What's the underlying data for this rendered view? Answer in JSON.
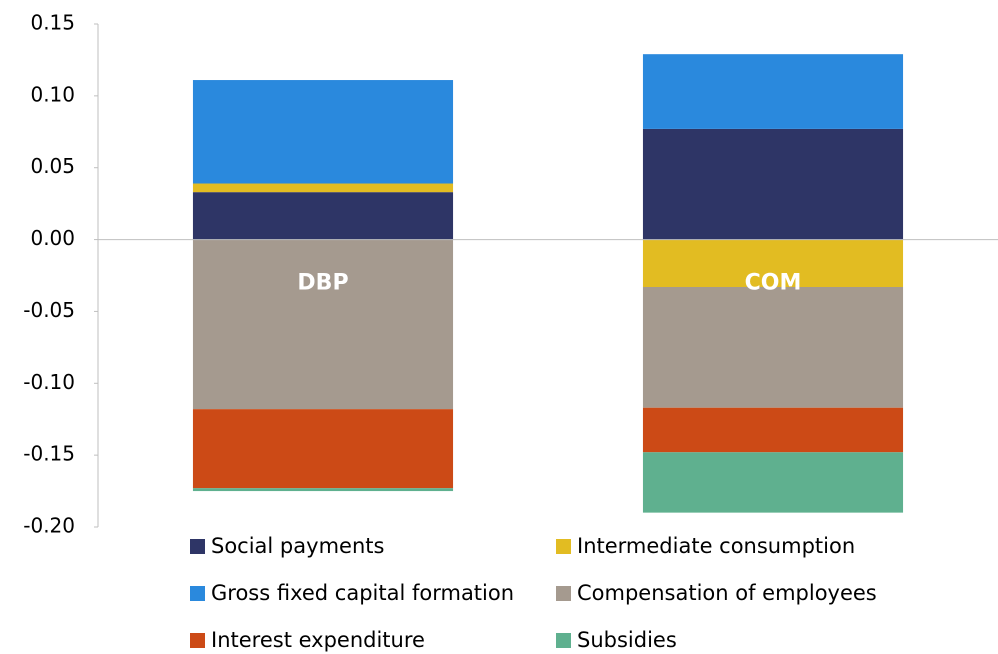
{
  "chart_data": {
    "type": "stacked_bar",
    "categories": [
      "DBP",
      "COM"
    ],
    "series": [
      {
        "name": "Social payments",
        "color": "#2e3566",
        "values": [
          0.033,
          0.077
        ]
      },
      {
        "name": "Intermediate consumption",
        "color": "#e2bc22",
        "values": [
          0.006,
          -0.033
        ]
      },
      {
        "name": "Gross fixed capital formation",
        "color": "#2a89dd",
        "values": [
          0.072,
          0.052
        ]
      },
      {
        "name": "Compensation of employees",
        "color": "#a59a8f",
        "values": [
          -0.118,
          -0.084
        ]
      },
      {
        "name": "Interest expenditure",
        "color": "#cc4a16",
        "values": [
          -0.055,
          -0.031
        ]
      },
      {
        "name": "Subsidies",
        "color": "#5fb08f",
        "values": [
          -0.002,
          -0.042
        ]
      }
    ],
    "ylim": [
      -0.2,
      0.15
    ],
    "yticks": [
      0.15,
      {
        "value": 0.1,
        "label": "0.10"
      },
      {
        "value": 0.05,
        "label": "0.05"
      },
      {
        "value": 0,
        "label": "0.00"
      },
      {
        "value": -0.05,
        "label": "-0.05"
      },
      {
        "value": -0.1,
        "label": "-0.10"
      },
      -0.15,
      {
        "value": -0.2,
        "label": "-0.20"
      }
    ],
    "grid": false
  }
}
